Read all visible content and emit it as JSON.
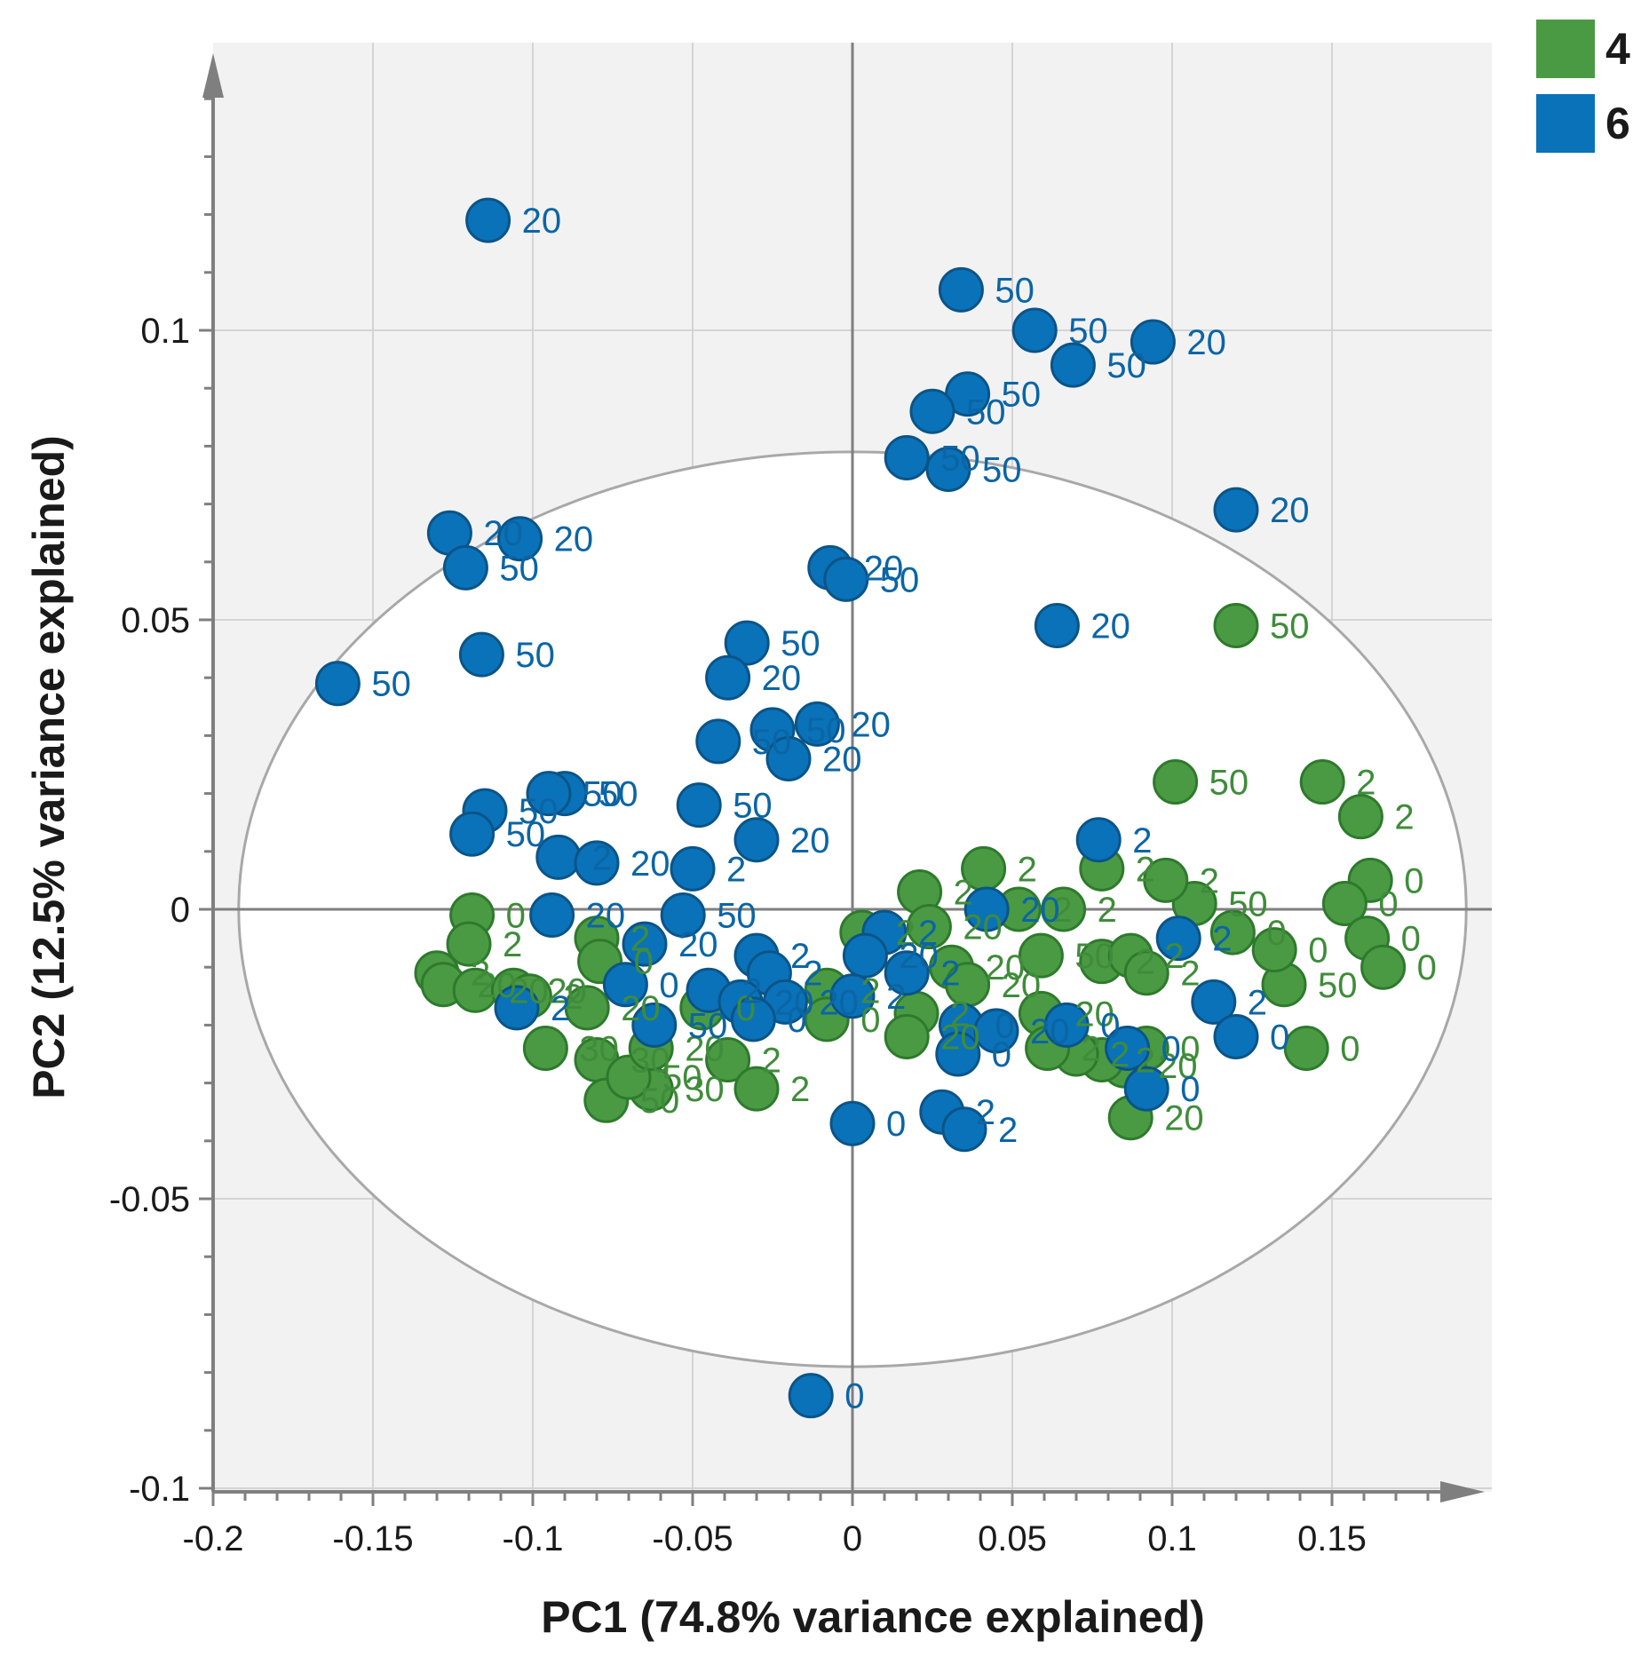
{
  "chart_data": {
    "type": "scatter",
    "title": "",
    "xlabel": "PC1 (74.8% variance explained)",
    "ylabel": "PC2 (12.5% variance explained)",
    "xlim": [
      -0.2,
      0.2
    ],
    "ylim": [
      -0.1,
      0.15
    ],
    "xticks": [
      -0.2,
      -0.15,
      -0.1,
      -0.05,
      0,
      0.05,
      0.1,
      0.15
    ],
    "xtick_labels": [
      "-0.2",
      "-0.15",
      "-0.1",
      "-0.05",
      "0",
      "0.05",
      "0.1",
      "0.15"
    ],
    "yticks": [
      -0.1,
      -0.05,
      0,
      0.05,
      0.1
    ],
    "ytick_labels": [
      "-0.1",
      "-0.05",
      "0",
      "0.05",
      "0.1"
    ],
    "grid": true,
    "legend_position": "top-right",
    "colors": {
      "group4": "#4a9a44",
      "group4_edge": "#2e7a2c",
      "group6": "#0a72b8",
      "group6_edge": "#0b5488",
      "background": "#f2f2f2",
      "grid": "#d4d4d4",
      "axis": "#7f7f7f",
      "ellipse": "#a8a8a8"
    },
    "ellipse": {
      "center": [
        0,
        0
      ],
      "rx": 0.192,
      "ry": 0.079
    },
    "series": [
      {
        "name": "4",
        "color": "#4a9a44",
        "points": [
          {
            "x": 0.12,
            "y": 0.049,
            "label": "50"
          },
          {
            "x": 0.101,
            "y": 0.022,
            "label": "50"
          },
          {
            "x": 0.147,
            "y": 0.022,
            "label": "2"
          },
          {
            "x": 0.159,
            "y": 0.016,
            "label": "2"
          },
          {
            "x": 0.162,
            "y": 0.005,
            "label": "0"
          },
          {
            "x": 0.154,
            "y": 0.001,
            "label": "0"
          },
          {
            "x": 0.161,
            "y": -0.005,
            "label": "0"
          },
          {
            "x": 0.166,
            "y": -0.01,
            "label": "0"
          },
          {
            "x": 0.142,
            "y": -0.024,
            "label": "0"
          },
          {
            "x": 0.135,
            "y": -0.013,
            "label": "50"
          },
          {
            "x": 0.132,
            "y": -0.007,
            "label": "0"
          },
          {
            "x": 0.119,
            "y": -0.004,
            "label": "0"
          },
          {
            "x": 0.107,
            "y": 0.001,
            "label": "50"
          },
          {
            "x": 0.098,
            "y": 0.005,
            "label": "2"
          },
          {
            "x": 0.078,
            "y": 0.007,
            "label": "2"
          },
          {
            "x": 0.066,
            "y": 0.0,
            "label": "2"
          },
          {
            "x": 0.078,
            "y": -0.009,
            "label": "2"
          },
          {
            "x": 0.087,
            "y": -0.008,
            "label": "2"
          },
          {
            "x": 0.092,
            "y": -0.011,
            "label": "2"
          },
          {
            "x": 0.059,
            "y": -0.008,
            "label": "50"
          },
          {
            "x": 0.059,
            "y": -0.018,
            "label": "20"
          },
          {
            "x": 0.041,
            "y": 0.007,
            "label": "2"
          },
          {
            "x": 0.052,
            "y": 0.0,
            "label": "2"
          },
          {
            "x": 0.021,
            "y": 0.003,
            "label": "2"
          },
          {
            "x": 0.024,
            "y": -0.003,
            "label": "20"
          },
          {
            "x": 0.031,
            "y": -0.01,
            "label": "20"
          },
          {
            "x": 0.036,
            "y": -0.013,
            "label": "20"
          },
          {
            "x": 0.02,
            "y": -0.018,
            "label": "2"
          },
          {
            "x": 0.017,
            "y": -0.022,
            "label": "20"
          },
          {
            "x": 0.003,
            "y": -0.004,
            "label": "2"
          },
          {
            "x": -0.008,
            "y": -0.014,
            "label": "2"
          },
          {
            "x": -0.008,
            "y": -0.019,
            "label": "0"
          },
          {
            "x": 0.092,
            "y": -0.024,
            "label": "0"
          },
          {
            "x": 0.085,
            "y": -0.027,
            "label": "20"
          },
          {
            "x": 0.078,
            "y": -0.026,
            "label": "2"
          },
          {
            "x": 0.07,
            "y": -0.025,
            "label": "2"
          },
          {
            "x": 0.061,
            "y": -0.024,
            "label": "2"
          },
          {
            "x": 0.087,
            "y": -0.036,
            "label": "20"
          },
          {
            "x": -0.119,
            "y": -0.001,
            "label": "0"
          },
          {
            "x": -0.12,
            "y": -0.006,
            "label": "2"
          },
          {
            "x": -0.13,
            "y": -0.011,
            "label": "2"
          },
          {
            "x": -0.128,
            "y": -0.013,
            "label": "20"
          },
          {
            "x": -0.118,
            "y": -0.014,
            "label": "20"
          },
          {
            "x": -0.106,
            "y": -0.014,
            "label": "20"
          },
          {
            "x": -0.101,
            "y": -0.015,
            "label": "2"
          },
          {
            "x": -0.08,
            "y": -0.005,
            "label": "2"
          },
          {
            "x": -0.079,
            "y": -0.009,
            "label": "0"
          },
          {
            "x": -0.083,
            "y": -0.017,
            "label": "20"
          },
          {
            "x": -0.096,
            "y": -0.024,
            "label": "30"
          },
          {
            "x": -0.08,
            "y": -0.026,
            "label": "30"
          },
          {
            "x": -0.077,
            "y": -0.033,
            "label": "50"
          },
          {
            "x": -0.063,
            "y": -0.031,
            "label": "30"
          },
          {
            "x": -0.07,
            "y": -0.029,
            "label": "50"
          },
          {
            "x": -0.063,
            "y": -0.024,
            "label": "20"
          },
          {
            "x": -0.039,
            "y": -0.026,
            "label": "2"
          },
          {
            "x": -0.03,
            "y": -0.031,
            "label": "2"
          },
          {
            "x": -0.047,
            "y": -0.017,
            "label": "0"
          }
        ]
      },
      {
        "name": "6",
        "color": "#0a72b8",
        "points": [
          {
            "x": -0.114,
            "y": 0.119,
            "label": "20"
          },
          {
            "x": 0.034,
            "y": 0.107,
            "label": "50"
          },
          {
            "x": 0.057,
            "y": 0.1,
            "label": "50"
          },
          {
            "x": 0.069,
            "y": 0.094,
            "label": "50"
          },
          {
            "x": 0.094,
            "y": 0.098,
            "label": "20"
          },
          {
            "x": 0.036,
            "y": 0.089,
            "label": "50"
          },
          {
            "x": 0.025,
            "y": 0.086,
            "label": "50"
          },
          {
            "x": 0.017,
            "y": 0.078,
            "label": "50"
          },
          {
            "x": 0.03,
            "y": 0.076,
            "label": "50"
          },
          {
            "x": 0.12,
            "y": 0.069,
            "label": "20"
          },
          {
            "x": -0.126,
            "y": 0.065,
            "label": "20"
          },
          {
            "x": -0.104,
            "y": 0.064,
            "label": "20"
          },
          {
            "x": -0.121,
            "y": 0.059,
            "label": "50"
          },
          {
            "x": -0.007,
            "y": 0.059,
            "label": "20"
          },
          {
            "x": -0.002,
            "y": 0.057,
            "label": "50"
          },
          {
            "x": 0.064,
            "y": 0.049,
            "label": "20"
          },
          {
            "x": -0.116,
            "y": 0.044,
            "label": "50"
          },
          {
            "x": -0.161,
            "y": 0.039,
            "label": "50"
          },
          {
            "x": -0.033,
            "y": 0.046,
            "label": "50"
          },
          {
            "x": -0.039,
            "y": 0.04,
            "label": "20"
          },
          {
            "x": -0.042,
            "y": 0.029,
            "label": "50"
          },
          {
            "x": -0.025,
            "y": 0.031,
            "label": "50"
          },
          {
            "x": -0.011,
            "y": 0.032,
            "label": "20"
          },
          {
            "x": -0.02,
            "y": 0.026,
            "label": "20"
          },
          {
            "x": -0.048,
            "y": 0.018,
            "label": "50"
          },
          {
            "x": -0.03,
            "y": 0.012,
            "label": "20"
          },
          {
            "x": -0.09,
            "y": 0.02,
            "label": "50"
          },
          {
            "x": -0.095,
            "y": 0.02,
            "label": "50"
          },
          {
            "x": -0.115,
            "y": 0.017,
            "label": "50"
          },
          {
            "x": -0.119,
            "y": 0.013,
            "label": "50"
          },
          {
            "x": -0.092,
            "y": 0.009,
            "label": "2"
          },
          {
            "x": -0.08,
            "y": 0.008,
            "label": "20"
          },
          {
            "x": -0.05,
            "y": 0.007,
            "label": "2"
          },
          {
            "x": -0.094,
            "y": -0.001,
            "label": "20"
          },
          {
            "x": -0.053,
            "y": -0.001,
            "label": "50"
          },
          {
            "x": 0.077,
            "y": 0.012,
            "label": "2"
          },
          {
            "x": 0.102,
            "y": -0.005,
            "label": "2"
          },
          {
            "x": 0.113,
            "y": -0.016,
            "label": "2"
          },
          {
            "x": 0.12,
            "y": -0.022,
            "label": "0"
          },
          {
            "x": 0.092,
            "y": -0.031,
            "label": "0"
          },
          {
            "x": -0.013,
            "y": -0.084,
            "label": "0"
          },
          {
            "x": 0.0,
            "y": -0.037,
            "label": "0"
          },
          {
            "x": 0.028,
            "y": -0.035,
            "label": "2"
          },
          {
            "x": 0.035,
            "y": -0.038,
            "label": "2"
          },
          {
            "x": 0.042,
            "y": 0.0,
            "label": "20"
          },
          {
            "x": 0.01,
            "y": -0.004,
            "label": "2"
          },
          {
            "x": 0.004,
            "y": -0.008,
            "label": "20"
          },
          {
            "x": 0.017,
            "y": -0.011,
            "label": "2"
          },
          {
            "x": 0.034,
            "y": -0.02,
            "label": "0"
          },
          {
            "x": 0.033,
            "y": -0.025,
            "label": "0"
          },
          {
            "x": 0.045,
            "y": -0.021,
            "label": "20"
          },
          {
            "x": 0.067,
            "y": -0.02,
            "label": "0"
          },
          {
            "x": 0.086,
            "y": -0.024,
            "label": "0"
          },
          {
            "x": -0.03,
            "y": -0.008,
            "label": "2"
          },
          {
            "x": -0.026,
            "y": -0.011,
            "label": "2"
          },
          {
            "x": -0.045,
            "y": -0.014,
            "label": "2"
          },
          {
            "x": -0.035,
            "y": -0.016,
            "label": "20"
          },
          {
            "x": -0.021,
            "y": -0.016,
            "label": "20"
          },
          {
            "x": -0.031,
            "y": -0.019,
            "label": "0"
          },
          {
            "x": -0.071,
            "y": -0.013,
            "label": "0"
          },
          {
            "x": -0.065,
            "y": -0.006,
            "label": "20"
          },
          {
            "x": -0.062,
            "y": -0.02,
            "label": "50"
          },
          {
            "x": -0.105,
            "y": -0.017,
            "label": "2"
          },
          {
            "x": 0.0,
            "y": -0.015,
            "label": "2"
          }
        ]
      }
    ]
  }
}
